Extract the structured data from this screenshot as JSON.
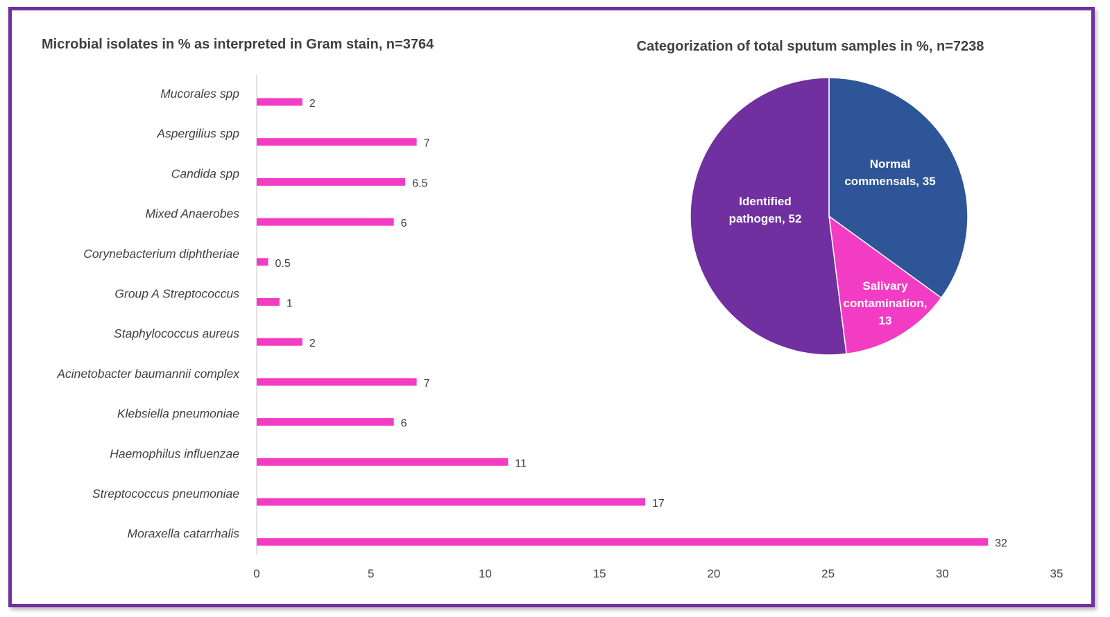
{
  "chart_data": [
    {
      "type": "bar",
      "orientation": "horizontal",
      "title": "Microbial isolates in % as interpreted in Gram stain, n=3764",
      "categories": [
        "Mucorales spp",
        "Aspergilius spp",
        "Candida spp",
        "Mixed Anaerobes",
        "Corynebacterium diphtheriae",
        "Group A Streptococcus",
        "Staphylococcus aureus",
        "Acinetobacter baumannii complex",
        "Klebsiella pneumoniae",
        "Haemophilus influenzae",
        "Streptococcus pneumoniae",
        "Moraxella catarrhalis"
      ],
      "values": [
        2,
        7,
        6.5,
        6,
        0.5,
        1,
        2,
        7,
        6,
        11,
        17,
        32
      ],
      "value_labels": [
        "2",
        "7",
        "6.5",
        "6",
        "0.5",
        "1",
        "2",
        "7",
        "6",
        "11",
        "17",
        "32"
      ],
      "xlim": [
        0,
        35
      ],
      "xticks": [
        0,
        5,
        10,
        15,
        20,
        25,
        30,
        35
      ],
      "xtick_labels": [
        "0",
        "5",
        "10",
        "15",
        "20",
        "25",
        "30",
        "35"
      ],
      "color": "#f23cc4",
      "grid": false,
      "legend": "none"
    },
    {
      "type": "pie",
      "title": "Categorization of total sputum samples in %, n=7238",
      "slices": [
        {
          "label": "Normal commensals, 35",
          "lines": [
            "Normal",
            "commensals, 35"
          ],
          "value": 35,
          "color": "#2e5597"
        },
        {
          "label": "Salivary contamination, 13",
          "lines": [
            "Salivary",
            "contamination,",
            "13"
          ],
          "value": 13,
          "color": "#f23cc4"
        },
        {
          "label": "Identified pathogen, 52",
          "lines": [
            "Identified",
            "pathogen, 52"
          ],
          "value": 52,
          "color": "#7030a0"
        }
      ],
      "start": "top",
      "direction": "clockwise",
      "legend": "none"
    }
  ],
  "colors": {
    "frame": "#7030a0",
    "text": "#404040",
    "axis": "#d9d9d9"
  }
}
